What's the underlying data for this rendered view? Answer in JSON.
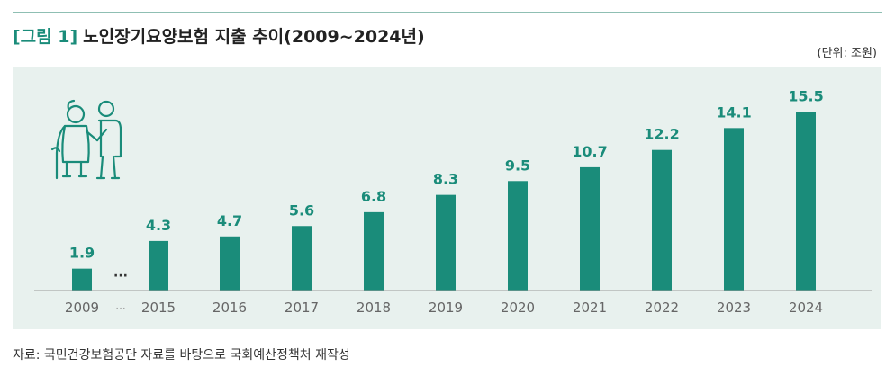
{
  "header": {
    "figure_label": "[그림 1]",
    "title": "노인장기요양보험 지출 추이(2009~2024년)",
    "unit": "(단위: 조원)"
  },
  "footer": {
    "source": "자료: 국민건강보험공단 자료를 바탕으로 국회예산정책처 재작성"
  },
  "icons": {
    "illustration": "elderly-couple-icon"
  },
  "colors": {
    "bar": "#1a8c7a",
    "label": "#1a8c7a",
    "panel_bg": "#e8f1ee",
    "title_accent": "#1a8c7a"
  },
  "chart_data": {
    "type": "bar",
    "title": "노인장기요양보험 지출 추이(2009~2024년)",
    "unit": "(단위: 조원)",
    "categories": [
      "2009",
      "···",
      "2015",
      "2016",
      "2017",
      "2018",
      "2019",
      "2020",
      "2021",
      "2022",
      "2023",
      "2024"
    ],
    "values": [
      1.9,
      null,
      4.3,
      4.7,
      5.6,
      6.8,
      8.3,
      9.5,
      10.7,
      12.2,
      14.1,
      15.5
    ],
    "value_labels": [
      "1.9",
      "···",
      "4.3",
      "4.7",
      "5.6",
      "6.8",
      "8.3",
      "9.5",
      "10.7",
      "12.2",
      "14.1",
      "15.5"
    ],
    "ylim": [
      0,
      16
    ],
    "grid": false,
    "legend": "none"
  }
}
